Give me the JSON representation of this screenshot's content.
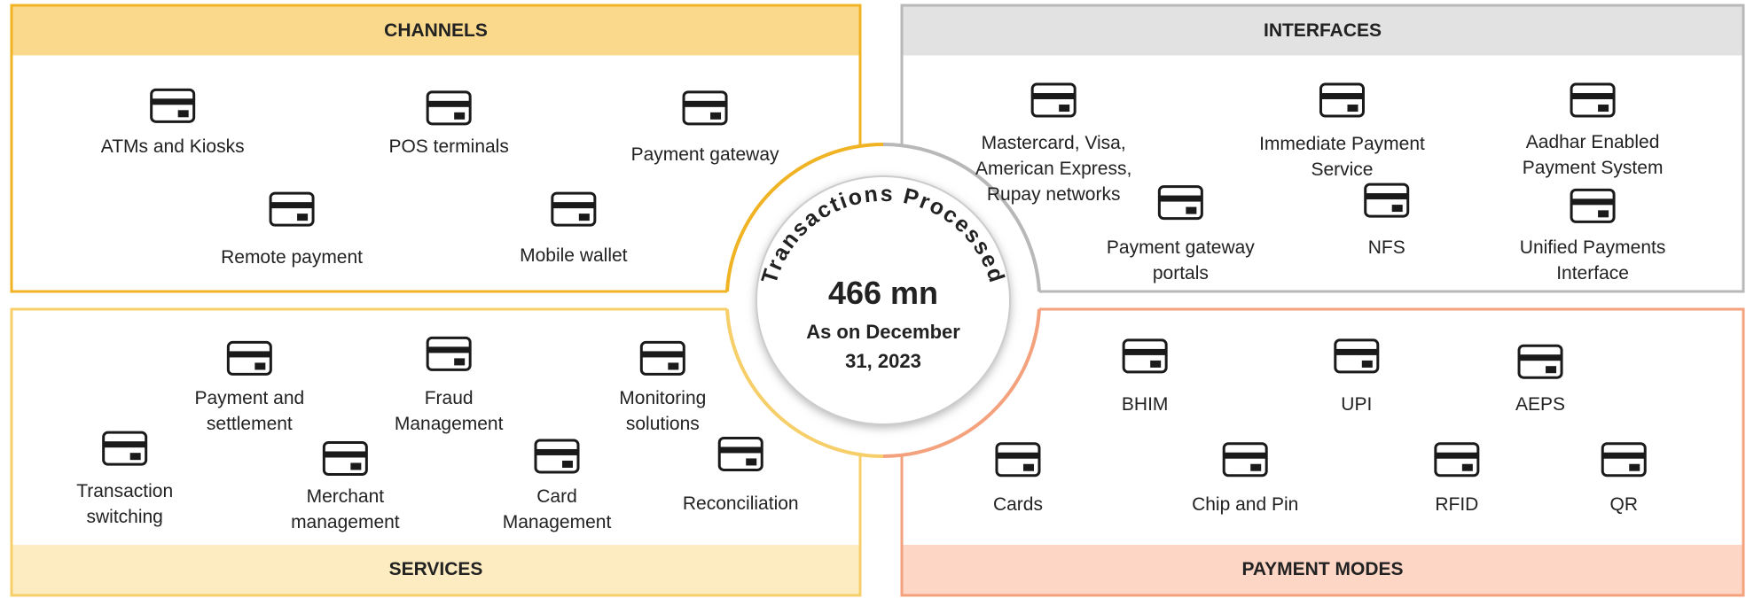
{
  "panels": [
    {
      "title": "CHANNELS",
      "items": [
        "ATMs and Kiosks",
        "POS terminals",
        "Payment gateway",
        "Remote payment",
        "Mobile wallet"
      ]
    },
    {
      "title": "INTERFACES",
      "items": [
        "Mastercard, Visa, American Express, Rupay networks",
        "Immediate Payment Service",
        "Aadhar Enabled Payment System",
        "Payment gateway portals",
        "NFS",
        "Unified Payments Interface"
      ]
    },
    {
      "title": "SERVICES",
      "items": [
        "Payment and settlement",
        "Fraud Management",
        "Monitoring solutions",
        "Transaction switching",
        "Merchant management",
        "Card Management",
        "Reconciliation"
      ]
    },
    {
      "title": "PAYMENT MODES",
      "items": [
        "BHIM",
        "UPI",
        "AEPS",
        "Cards",
        "Chip and Pin",
        "RFID",
        "QR"
      ]
    }
  ],
  "center": {
    "arc_text": "Transactions Processed",
    "value": "466 mn",
    "date": "As on December 31, 2023"
  }
}
